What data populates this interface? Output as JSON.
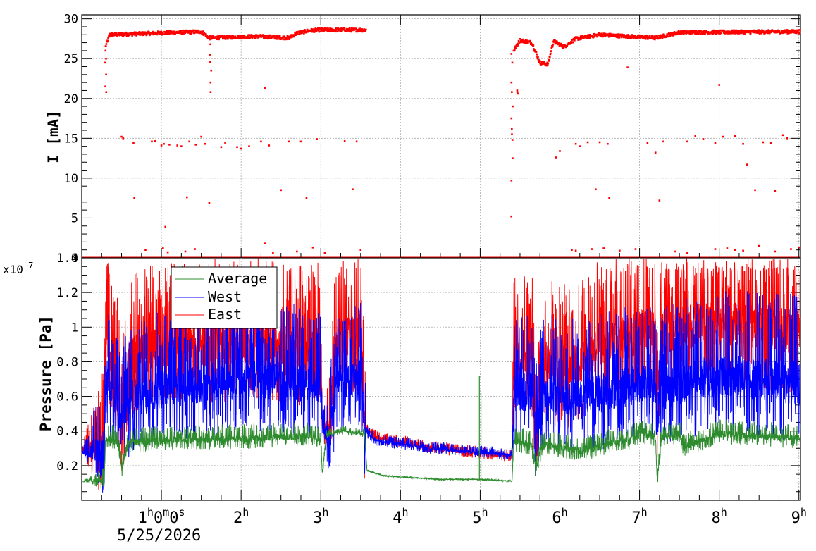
{
  "chart_data": [
    {
      "type": "scatter",
      "panel": "current",
      "ylabel": "I [mA]",
      "ylim": [
        0,
        30.5
      ],
      "yticks": [
        0,
        5,
        10,
        15,
        20,
        25,
        30
      ],
      "grid": true,
      "xlim_hours": [
        0.0,
        9.02
      ],
      "series": [
        {
          "color": "#ff0000",
          "marker": "square",
          "segments": [
            {
              "start": 0.3,
              "end": 3.57,
              "level": 28.0,
              "profile": [
                [
                  0.3,
                  26.5
                ],
                [
                  0.35,
                  28.0
                ],
                [
                  1.5,
                  28.4
                ],
                [
                  1.6,
                  27.6
                ],
                [
                  2.2,
                  27.8
                ],
                [
                  2.6,
                  27.6
                ],
                [
                  2.7,
                  28.2
                ],
                [
                  2.85,
                  28.5
                ],
                [
                  3.0,
                  28.6
                ],
                [
                  3.57,
                  28.6
                ]
              ]
            },
            {
              "start": 5.42,
              "end": 9.02,
              "level": 28.0,
              "profile": [
                [
                  5.42,
                  26.0
                ],
                [
                  5.5,
                  27.3
                ],
                [
                  5.65,
                  27.0
                ],
                [
                  5.75,
                  24.5
                ],
                [
                  5.85,
                  24.3
                ],
                [
                  5.92,
                  27.2
                ],
                [
                  6.05,
                  26.5
                ],
                [
                  6.2,
                  27.5
                ],
                [
                  6.5,
                  28.0
                ],
                [
                  7.2,
                  27.6
                ],
                [
                  7.5,
                  28.3
                ],
                [
                  9.02,
                  28.4
                ]
              ]
            }
          ],
          "ramps": [
            {
              "t": 0.3,
              "values": [
                20.8,
                21.5,
                23.0,
                24.5,
                25.0,
                26.0
              ]
            },
            {
              "t": 1.62,
              "values": [
                20.8,
                22.0,
                23.5,
                24.6,
                25.5,
                26.8
              ]
            },
            {
              "t": 5.4,
              "values": [
                5.2,
                9.7,
                12.5,
                14.8,
                15.5,
                16.2,
                17.5,
                19.0,
                20.8,
                22.0,
                24.5,
                25.6
              ]
            },
            {
              "t": 5.47,
              "values": [
                20.6,
                20.8,
                21.0
              ]
            }
          ],
          "outliers": [
            [
              0.5,
              15.2
            ],
            [
              0.52,
              15.0
            ],
            [
              0.65,
              14.4
            ],
            [
              0.66,
              7.5
            ],
            [
              0.88,
              14.6
            ],
            [
              0.92,
              14.7
            ],
            [
              1.0,
              14.1
            ],
            [
              1.03,
              14.3
            ],
            [
              1.05,
              3.9
            ],
            [
              1.1,
              14.2
            ],
            [
              1.2,
              14.1
            ],
            [
              1.25,
              14.0
            ],
            [
              1.35,
              14.6
            ],
            [
              1.32,
              7.6
            ],
            [
              1.43,
              14.2
            ],
            [
              1.5,
              15.2
            ],
            [
              1.55,
              14.3
            ],
            [
              1.6,
              6.9
            ],
            [
              1.75,
              13.9
            ],
            [
              1.8,
              14.4
            ],
            [
              1.95,
              13.9
            ],
            [
              2.0,
              13.7
            ],
            [
              2.1,
              14.0
            ],
            [
              2.25,
              14.6
            ],
            [
              2.3,
              21.3
            ],
            [
              2.35,
              14.1
            ],
            [
              2.5,
              8.5
            ],
            [
              2.6,
              14.6
            ],
            [
              2.75,
              14.6
            ],
            [
              2.82,
              7.5
            ],
            [
              2.95,
              14.9
            ],
            [
              3.3,
              14.7
            ],
            [
              3.45,
              14.6
            ],
            [
              3.4,
              8.6
            ],
            [
              5.95,
              12.6
            ],
            [
              6.0,
              13.4
            ],
            [
              6.2,
              14.3
            ],
            [
              6.25,
              14.0
            ],
            [
              6.35,
              14.5
            ],
            [
              6.5,
              14.5
            ],
            [
              6.45,
              8.6
            ],
            [
              6.6,
              14.3
            ],
            [
              6.62,
              7.5
            ],
            [
              6.85,
              23.9
            ],
            [
              7.1,
              14.4
            ],
            [
              7.2,
              13.2
            ],
            [
              7.25,
              7.2
            ],
            [
              7.3,
              14.6
            ],
            [
              7.6,
              14.6
            ],
            [
              7.7,
              15.3
            ],
            [
              7.8,
              14.9
            ],
            [
              7.95,
              14.4
            ],
            [
              8.0,
              21.7
            ],
            [
              8.05,
              15.2
            ],
            [
              8.2,
              15.3
            ],
            [
              8.3,
              14.3
            ],
            [
              8.35,
              11.7
            ],
            [
              8.45,
              8.5
            ],
            [
              8.55,
              14.5
            ],
            [
              8.65,
              14.4
            ],
            [
              8.7,
              8.4
            ],
            [
              8.8,
              15.4
            ],
            [
              8.85,
              15.0
            ],
            [
              0.8,
              1.0
            ],
            [
              1.02,
              1.2
            ],
            [
              1.08,
              0.7
            ],
            [
              1.3,
              0.8
            ],
            [
              1.42,
              1.1
            ],
            [
              2.3,
              1.8
            ],
            [
              2.4,
              0.6
            ],
            [
              2.7,
              0.8
            ],
            [
              2.9,
              1.3
            ],
            [
              3.05,
              0.6
            ],
            [
              3.5,
              1.0
            ],
            [
              6.15,
              1.0
            ],
            [
              6.2,
              0.9
            ],
            [
              6.4,
              1.1
            ],
            [
              6.55,
              1.2
            ],
            [
              6.75,
              0.9
            ],
            [
              6.95,
              1.1
            ],
            [
              7.45,
              0.8
            ],
            [
              7.6,
              0.6
            ],
            [
              7.95,
              1.1
            ],
            [
              8.1,
              1.2
            ],
            [
              8.2,
              1.0
            ],
            [
              8.3,
              0.9
            ],
            [
              8.5,
              1.5
            ],
            [
              8.7,
              0.8
            ],
            [
              8.9,
              1.1
            ],
            [
              9.0,
              1.3
            ]
          ],
          "zero_line": true
        }
      ]
    },
    {
      "type": "line",
      "panel": "pressure",
      "ylabel": "Pressure [Pa]",
      "exponent": "x10",
      "exponent_power": "-7",
      "ylim": [
        0.0,
        1.4
      ],
      "yticks": [
        "0.2",
        "0.4",
        "0.6",
        "0.8",
        "1",
        "1.2",
        "1.4"
      ],
      "ytick_values": [
        0.2,
        0.4,
        0.6,
        0.8,
        1.0,
        1.2,
        1.4
      ],
      "grid": true,
      "legend_position": "top-left",
      "xlim_hours": [
        0.0,
        9.02
      ],
      "series": [
        {
          "name": "Average",
          "color": "#2e8b2e",
          "profile": [
            [
              0.0,
              0.11
            ],
            [
              0.28,
              0.11
            ],
            [
              0.3,
              0.36
            ],
            [
              0.45,
              0.33
            ],
            [
              0.5,
              0.18
            ],
            [
              0.6,
              0.33
            ],
            [
              1.0,
              0.34
            ],
            [
              2.0,
              0.35
            ],
            [
              2.9,
              0.37
            ],
            [
              3.0,
              0.33
            ],
            [
              3.02,
              0.14
            ],
            [
              3.07,
              0.38
            ],
            [
              3.3,
              0.4
            ],
            [
              3.55,
              0.38
            ],
            [
              3.58,
              0.17
            ],
            [
              3.8,
              0.14
            ],
            [
              4.5,
              0.12
            ],
            [
              5.0,
              0.12
            ],
            [
              5.4,
              0.11
            ],
            [
              5.42,
              0.34
            ],
            [
              5.65,
              0.31
            ],
            [
              5.7,
              0.17
            ],
            [
              5.78,
              0.32
            ],
            [
              6.0,
              0.3
            ],
            [
              6.3,
              0.28
            ],
            [
              7.0,
              0.37
            ],
            [
              7.2,
              0.36
            ],
            [
              7.22,
              0.12
            ],
            [
              7.28,
              0.36
            ],
            [
              7.5,
              0.38
            ],
            [
              7.55,
              0.3
            ],
            [
              8.0,
              0.38
            ],
            [
              9.02,
              0.35
            ]
          ],
          "noise": [
            [
              0.0,
              0.0
            ],
            [
              0.3,
              0.06
            ],
            [
              3.0,
              0.06
            ],
            [
              3.02,
              0.02
            ],
            [
              3.55,
              0.02
            ],
            [
              3.58,
              0.004
            ],
            [
              5.4,
              0.004
            ],
            [
              5.42,
              0.06
            ],
            [
              9.02,
              0.06
            ]
          ],
          "spikes": [
            [
              4.99,
              0.72
            ],
            [
              5.01,
              0.62
            ]
          ]
        },
        {
          "name": "West",
          "color": "#0000ff",
          "profile": [
            [
              0.0,
              0.27
            ],
            [
              0.28,
              0.28
            ],
            [
              0.3,
              0.7
            ],
            [
              0.45,
              0.55
            ],
            [
              0.48,
              0.4
            ],
            [
              0.6,
              0.55
            ],
            [
              1.0,
              0.62
            ],
            [
              2.0,
              0.68
            ],
            [
              3.0,
              0.65
            ],
            [
              3.02,
              0.4
            ],
            [
              3.1,
              0.35
            ],
            [
              3.2,
              0.65
            ],
            [
              3.5,
              0.7
            ],
            [
              3.55,
              0.4
            ],
            [
              3.7,
              0.34
            ],
            [
              4.5,
              0.29
            ],
            [
              5.4,
              0.26
            ],
            [
              5.42,
              0.6
            ],
            [
              5.65,
              0.6
            ],
            [
              5.7,
              0.38
            ],
            [
              5.78,
              0.6
            ],
            [
              6.2,
              0.55
            ],
            [
              7.0,
              0.65
            ],
            [
              7.2,
              0.62
            ],
            [
              7.22,
              0.45
            ],
            [
              7.28,
              0.62
            ],
            [
              8.0,
              0.7
            ],
            [
              9.02,
              0.65
            ]
          ],
          "noise": [
            [
              0.0,
              0.02
            ],
            [
              0.3,
              0.32
            ],
            [
              3.0,
              0.32
            ],
            [
              3.02,
              0.06
            ],
            [
              3.15,
              0.3
            ],
            [
              3.55,
              0.3
            ],
            [
              3.58,
              0.03
            ],
            [
              5.4,
              0.03
            ],
            [
              5.42,
              0.32
            ],
            [
              9.02,
              0.36
            ]
          ]
        },
        {
          "name": "East",
          "color": "#ff0000",
          "profile": [
            [
              0.0,
              0.28
            ],
            [
              0.28,
              0.29
            ],
            [
              0.3,
              0.95
            ],
            [
              0.45,
              0.65
            ],
            [
              0.5,
              0.4
            ],
            [
              0.6,
              0.8
            ],
            [
              1.0,
              0.85
            ],
            [
              2.0,
              0.88
            ],
            [
              3.0,
              0.85
            ],
            [
              3.02,
              0.42
            ],
            [
              3.1,
              0.38
            ],
            [
              3.2,
              0.9
            ],
            [
              3.5,
              0.95
            ],
            [
              3.55,
              0.42
            ],
            [
              3.7,
              0.36
            ],
            [
              4.5,
              0.29
            ],
            [
              5.4,
              0.25
            ],
            [
              5.42,
              0.85
            ],
            [
              5.65,
              0.8
            ],
            [
              5.7,
              0.4
            ],
            [
              5.78,
              0.8
            ],
            [
              6.0,
              0.7
            ],
            [
              6.5,
              0.85
            ],
            [
              7.0,
              0.95
            ],
            [
              7.2,
              0.95
            ],
            [
              7.22,
              0.5
            ],
            [
              7.28,
              0.95
            ],
            [
              8.0,
              1.0
            ],
            [
              9.02,
              0.95
            ]
          ],
          "noise": [
            [
              0.0,
              0.02
            ],
            [
              0.3,
              0.35
            ],
            [
              3.0,
              0.35
            ],
            [
              3.02,
              0.06
            ],
            [
              3.15,
              0.35
            ],
            [
              3.55,
              0.35
            ],
            [
              3.58,
              0.03
            ],
            [
              5.4,
              0.03
            ],
            [
              5.42,
              0.35
            ],
            [
              9.02,
              0.38
            ]
          ]
        }
      ]
    }
  ],
  "x_axis": {
    "ticks": [
      {
        "hour": 1,
        "label": "1",
        "sup1": "h",
        "mid": "0",
        "sup2": "m",
        "mid2": "0",
        "sup3": "s"
      },
      {
        "hour": 2,
        "label": "2",
        "sup1": "h"
      },
      {
        "hour": 3,
        "label": "3",
        "sup1": "h"
      },
      {
        "hour": 4,
        "label": "4",
        "sup1": "h"
      },
      {
        "hour": 5,
        "label": "5",
        "sup1": "h"
      },
      {
        "hour": 6,
        "label": "6",
        "sup1": "h"
      },
      {
        "hour": 7,
        "label": "7",
        "sup1": "h"
      },
      {
        "hour": 8,
        "label": "8",
        "sup1": "h"
      },
      {
        "hour": 9,
        "label": "9",
        "sup1": "h"
      }
    ],
    "date": "5/25/2026"
  },
  "colors": {
    "frame": "#000000",
    "grid": "#aaaaaa",
    "current": "#ff0000",
    "average": "#2e8b2e",
    "west": "#0000ff",
    "east": "#ff0000"
  }
}
